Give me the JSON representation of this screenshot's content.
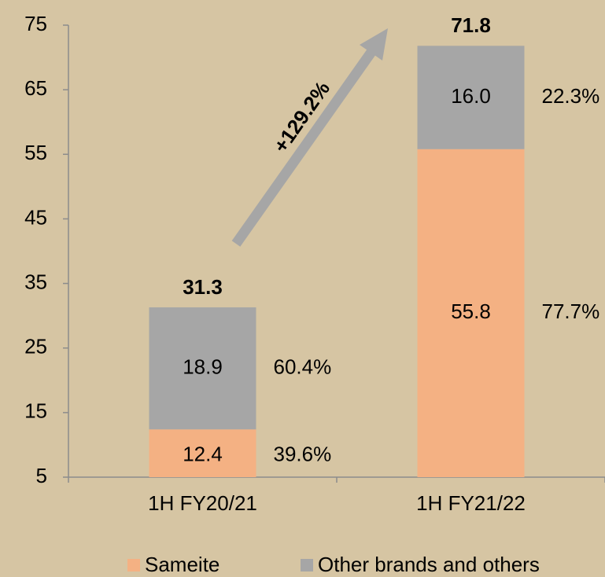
{
  "chart_data": {
    "type": "stacked_bar",
    "categories": [
      "1H FY20/21",
      "1H FY21/22"
    ],
    "series": [
      {
        "name": "Sameite",
        "color": "#f4b183",
        "values": [
          12.4,
          55.8
        ],
        "shares": [
          39.6,
          77.7
        ],
        "share_labels": [
          "39.6%",
          "77.7%"
        ]
      },
      {
        "name": "Other brands and others",
        "color": "#a6a6a6",
        "values": [
          18.9,
          16.0
        ],
        "value_labels": [
          "18.9",
          "16.0"
        ],
        "shares": [
          60.4,
          22.3
        ],
        "share_labels": [
          "60.4%",
          "22.3%"
        ]
      }
    ],
    "totals": [
      31.3,
      71.8
    ],
    "annotation": "+129.2%",
    "ylim": [
      5,
      75
    ],
    "yticks": [
      5,
      15,
      25,
      35,
      45,
      55,
      65,
      75
    ],
    "legend": "bottom"
  }
}
